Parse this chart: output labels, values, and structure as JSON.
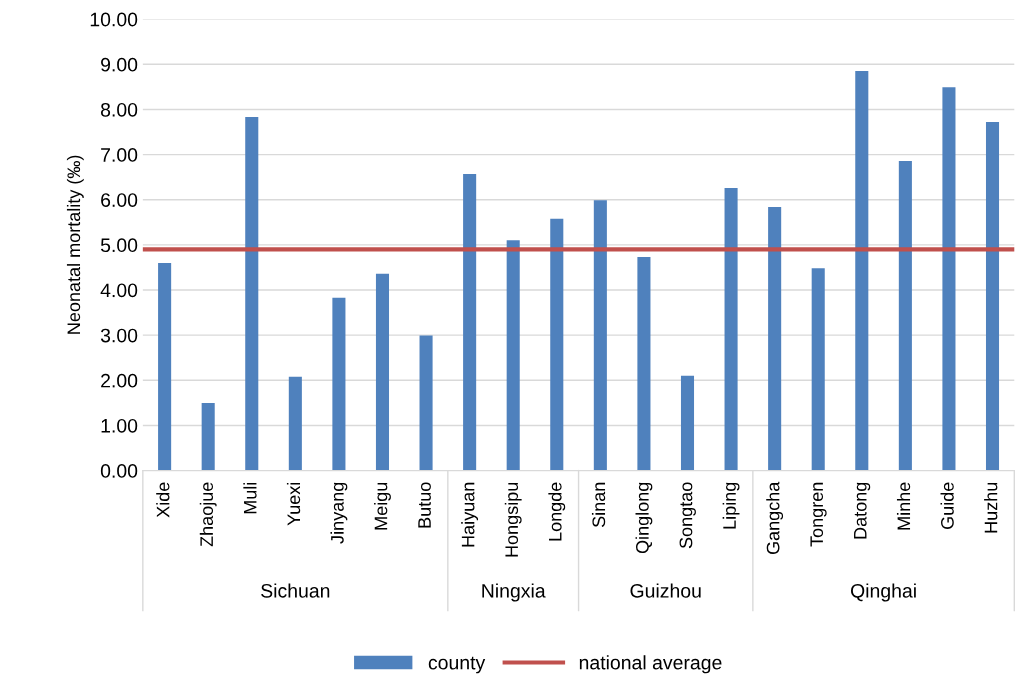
{
  "chart_data": {
    "type": "bar",
    "ylabel": "Neonatal mortality (‰)",
    "categories": [
      "Xide",
      "Zhaojue",
      "Muli",
      "Yuexi",
      "Jinyang",
      "Meigu",
      "Butuo",
      "Haiyuan",
      "Hongsipu",
      "Longde",
      "Sinan",
      "Qinglong",
      "Songtao",
      "Liping",
      "Gangcha",
      "Tongren",
      "Datong",
      "Minhe",
      "Guide",
      "Huzhu"
    ],
    "series": [
      {
        "name": "county",
        "color": "#4f81bd",
        "values": [
          4.6,
          1.5,
          7.83,
          2.08,
          3.83,
          4.36,
          2.99,
          6.57,
          5.1,
          5.58,
          5.99,
          4.73,
          2.1,
          6.26,
          5.84,
          4.48,
          8.85,
          6.86,
          8.49,
          7.72
        ]
      }
    ],
    "ref_lines": [
      {
        "axis": "y",
        "value": 4.9,
        "label": "national average",
        "color": "#c0504d"
      }
    ],
    "annotations": [
      "Sichuan",
      "Ningxia",
      "Guizhou",
      "Qinghai"
    ],
    "ylim": [
      0,
      10
    ],
    "yticks": [
      {
        "value": 0,
        "label": "0.00"
      },
      {
        "value": 1,
        "label": "1.00"
      },
      {
        "value": 2,
        "label": "2.00"
      },
      {
        "value": 3,
        "label": "3.00"
      },
      {
        "value": 4,
        "label": "4.00"
      },
      {
        "value": 5,
        "label": "5.00"
      },
      {
        "value": 6,
        "label": "6.00"
      },
      {
        "value": 7,
        "label": "7.00"
      },
      {
        "value": 8,
        "label": "8.00"
      },
      {
        "value": 9,
        "label": "9.00"
      },
      {
        "value": 10,
        "label": "10.00"
      }
    ],
    "grid": "y",
    "legend": "bottom"
  }
}
